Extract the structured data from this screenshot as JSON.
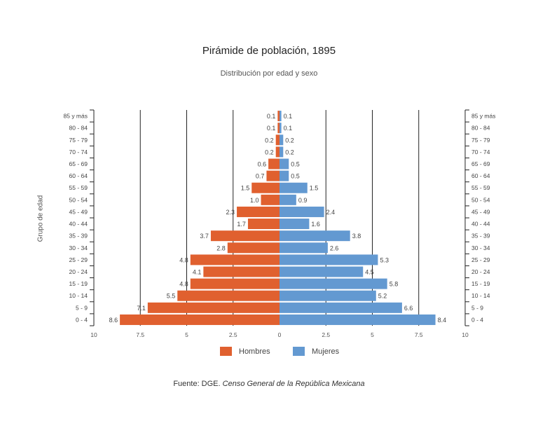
{
  "chart_data": {
    "type": "bar",
    "orientation": "horizontal-population-pyramid",
    "title": "Pirámide de población, 1895",
    "subtitle": "Distribución por edad y sexo",
    "ylabel": "Grupo de edad",
    "xlim": [
      -10,
      10
    ],
    "x_ticks": [
      "10",
      "7.5",
      "5",
      "2.5",
      "0",
      "2.5",
      "5",
      "7.5",
      "10"
    ],
    "grid": true,
    "legend_position": "bottom",
    "categories": [
      "85 y más",
      "80 - 84",
      "75 - 79",
      "70 - 74",
      "65 - 69",
      "60 - 64",
      "55 - 59",
      "50 - 54",
      "45 - 49",
      "40 - 44",
      "35 - 39",
      "30 - 34",
      "25 - 29",
      "20 - 24",
      "15 - 19",
      "10 - 14",
      "5 - 9",
      "0 - 4"
    ],
    "series": [
      {
        "name": "Hombres",
        "color": "#e0602f",
        "values": [
          0.1,
          0.1,
          0.2,
          0.2,
          0.6,
          0.7,
          1.5,
          1.0,
          2.3,
          1.7,
          3.7,
          2.8,
          4.8,
          4.1,
          4.8,
          5.5,
          7.1,
          8.6
        ],
        "labels": [
          "0.1",
          "0.1",
          "0.2",
          "0.2",
          "0.6",
          "0.7",
          "1.5",
          "1.0",
          "2.3",
          "1.7",
          "3.7",
          "2.8",
          "4.8",
          "4.1",
          "4.8",
          "5.5",
          "7.1",
          "8.6"
        ]
      },
      {
        "name": "Mujeres",
        "color": "#6399d1",
        "values": [
          0.1,
          0.1,
          0.2,
          0.2,
          0.5,
          0.5,
          1.5,
          0.9,
          2.4,
          1.6,
          3.8,
          2.6,
          5.3,
          4.5,
          5.8,
          5.2,
          6.6,
          8.4
        ],
        "labels": [
          "0.1",
          "0.1",
          "0.2",
          "0.2",
          "0.5",
          "0.5",
          "1.5",
          "0.9",
          "2.4",
          "1.6",
          "3.8",
          "2.6",
          "5.3",
          "4.5",
          "5.8",
          "5.2",
          "6.6",
          "8.4"
        ]
      }
    ]
  },
  "source": {
    "prefix": "Fuente: DGE. ",
    "title": "Censo General de la República Mexicana"
  }
}
